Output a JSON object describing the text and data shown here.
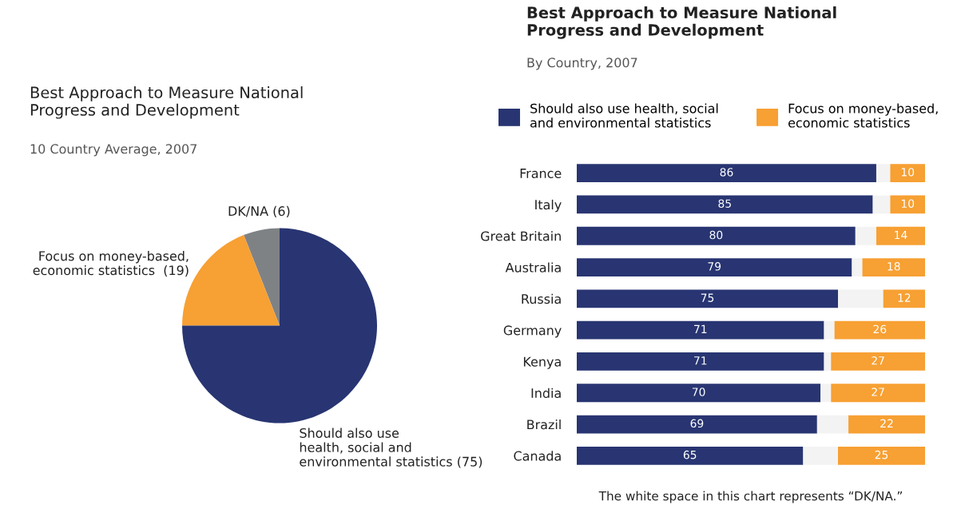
{
  "chart_data": [
    {
      "type": "pie",
      "title": "Best Approach to Measure National\nProgress and Development",
      "subtitle": "10 Country Average, 2007",
      "categories": [
        "DK/NA (6)",
        "Focus on money-based,\neconomic statistics  (19)",
        "Should also use\nhealth, social and\nenvironmental statistics (75)"
      ],
      "values": [
        6,
        19,
        75
      ],
      "colors": [
        "#7f8285",
        "#f7a033",
        "#283572"
      ]
    },
    {
      "type": "bar",
      "orientation": "horizontal",
      "title": "Best Approach to Measure National\nProgress and Development",
      "subtitle": "By Country, 2007",
      "categories": [
        "France",
        "Italy",
        "Great Britain",
        "Australia",
        "Russia",
        "Germany",
        "Kenya",
        "India",
        "Brazil",
        "Canada"
      ],
      "series": [
        {
          "name": "Should also use health, social\nand environmental statistics",
          "color": "#283572",
          "values": [
            86,
            85,
            80,
            79,
            75,
            71,
            71,
            70,
            69,
            65
          ],
          "value_labels": [
            "86",
            "85",
            "80",
            "79",
            "75",
            "71",
            "71",
            "70",
            "69",
            "65"
          ]
        },
        {
          "color": "#f3f3f3",
          "values": [
            4,
            5,
            6,
            3,
            13,
            3,
            2,
            3,
            9,
            10
          ]
        },
        {
          "name": "Focus on money-based,\neconomic statistics",
          "color": "#f7a033",
          "values": [
            10,
            10,
            14,
            18,
            12,
            26,
            27,
            27,
            22,
            25
          ],
          "value_labels": [
            "10",
            "10",
            "14",
            "18",
            "12",
            "26",
            "27",
            "27",
            "22",
            "25"
          ]
        }
      ],
      "stacked": true,
      "xlim": [
        0,
        100
      ],
      "tick_labels": "y",
      "legend": "top",
      "grid": false,
      "annotations": [
        "The white space in this chart represents “DK/NA.”"
      ]
    }
  ]
}
